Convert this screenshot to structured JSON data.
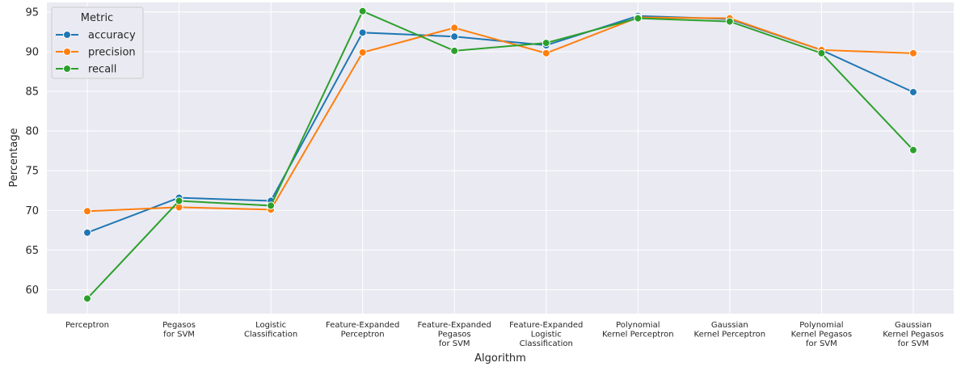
{
  "chart_data": {
    "type": "line",
    "xlabel": "Algorithm",
    "ylabel": "Percentage",
    "ylim": [
      57,
      96.2
    ],
    "yticks": [
      60,
      65,
      70,
      75,
      80,
      85,
      90,
      95
    ],
    "grid": true,
    "categories": [
      "Perceptron",
      "Pegasos\nfor SVM",
      "Logistic\nClassification",
      "Feature-Expanded\nPerceptron",
      "Feature-Expanded\nPegasos\nfor SVM",
      "Feature-Expanded\nLogistic\nClassification",
      "Polynomial\nKernel Perceptron",
      "Gaussian\nKernel Perceptron",
      "Polynomial\nKernel Pegasos\nfor SVM",
      "Gaussian\nKernel Pegasos\nfor SVM"
    ],
    "legend": {
      "title": "Metric",
      "position": "top-left"
    },
    "series": [
      {
        "name": "accuracy",
        "color": "#1f77b4",
        "values": [
          67.2,
          71.6,
          71.2,
          92.4,
          91.9,
          90.8,
          94.5,
          94.1,
          90.2,
          84.9
        ]
      },
      {
        "name": "precision",
        "color": "#ff7f0e",
        "values": [
          69.9,
          70.4,
          70.1,
          89.9,
          93.0,
          89.8,
          94.3,
          94.2,
          90.2,
          89.8
        ]
      },
      {
        "name": "recall",
        "color": "#2ca02c",
        "values": [
          58.9,
          71.2,
          70.6,
          95.1,
          90.1,
          91.1,
          94.2,
          93.8,
          89.8,
          77.6
        ]
      }
    ]
  }
}
